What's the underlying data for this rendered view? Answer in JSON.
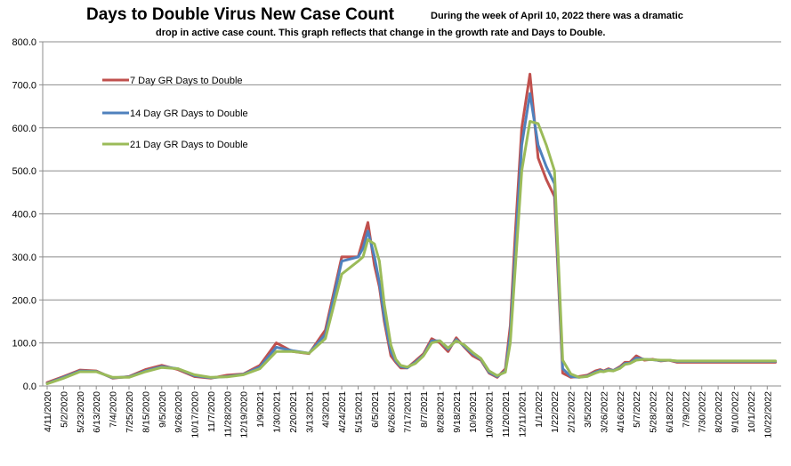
{
  "chart_data": {
    "type": "line",
    "title": "Days to Double Virus New Case Count",
    "subtitle_lines": [
      "During the week of April 10, 2022 there was a dramatic",
      "drop in active case count.  This graph reflects that change in the growth rate and Days to Double."
    ],
    "xlabel": "",
    "ylabel": "",
    "ylim": [
      0,
      800
    ],
    "y_ticks": [
      "0.0",
      "100.0",
      "200.0",
      "300.0",
      "400.0",
      "500.0",
      "600.0",
      "700.0",
      "800.0"
    ],
    "grid": true,
    "legend_position": "top-left",
    "x_tick_labels": [
      "4/11/2020",
      "5/2/2020",
      "5/23/2020",
      "6/13/2020",
      "7/4/2020",
      "7/25/2020",
      "8/15/2020",
      "9/5/2020",
      "9/26/2020",
      "10/17/2020",
      "11/7/2020",
      "11/28/2020",
      "12/19/2020",
      "1/9/2021",
      "1/30/2021",
      "2/20/2021",
      "3/13/2021",
      "4/3/2021",
      "4/24/2021",
      "5/15/2021",
      "6/5/2021",
      "6/26/2021",
      "7/17/2021",
      "8/7/2021",
      "8/28/2021",
      "9/18/2021",
      "10/9/2021",
      "10/30/2021",
      "11/20/2021",
      "12/11/2021",
      "1/1/2022",
      "1/22/2022",
      "2/12/2022",
      "3/5/2022",
      "3/26/2022",
      "4/16/2022",
      "5/7/2022",
      "5/28/2022",
      "6/18/2022",
      "7/9/2022",
      "7/30/2022",
      "8/20/2022",
      "9/10/2022",
      "10/1/2022",
      "10/22/2022"
    ],
    "x": [
      0,
      1,
      2,
      3,
      4,
      5,
      6,
      7,
      8,
      9,
      10,
      11,
      12,
      13,
      14,
      15,
      16,
      17,
      18,
      19,
      19.3,
      19.6,
      20,
      20.3,
      20.6,
      21,
      21.3,
      21.6,
      22,
      22.5,
      23,
      23.5,
      24,
      24.5,
      25,
      25.5,
      26,
      26.5,
      27,
      27.5,
      28,
      28.3,
      28.6,
      29,
      29.5,
      30,
      30.5,
      31,
      31.5,
      32,
      32.5,
      33,
      33.5,
      33.8,
      34,
      34.3,
      34.6,
      35,
      35.3,
      35.6,
      36,
      36.5,
      37,
      37.5,
      38,
      38.5,
      39,
      39.5,
      40,
      40.5,
      41,
      41.5,
      42,
      42.5,
      43,
      43.5,
      44,
      44.5
    ],
    "series": [
      {
        "name": "7 Day GR Days to Double",
        "color": "#c0504d",
        "values": [
          8,
          22,
          37,
          35,
          18,
          22,
          38,
          48,
          38,
          22,
          18,
          25,
          28,
          48,
          100,
          80,
          75,
          130,
          300,
          300,
          340,
          380,
          280,
          230,
          150,
          70,
          55,
          42,
          42,
          58,
          75,
          110,
          100,
          80,
          112,
          90,
          70,
          60,
          30,
          20,
          40,
          140,
          350,
          600,
          725,
          530,
          480,
          440,
          30,
          20,
          22,
          25,
          35,
          38,
          35,
          40,
          36,
          45,
          55,
          55,
          70,
          60,
          62,
          58,
          60,
          55,
          55,
          55,
          55,
          55,
          55,
          55,
          55,
          55,
          55,
          55,
          55,
          55
        ]
      },
      {
        "name": "14 Day GR Days to Double",
        "color": "#4f81bd",
        "values": [
          6,
          20,
          35,
          34,
          19,
          21,
          35,
          45,
          40,
          24,
          19,
          22,
          27,
          44,
          90,
          82,
          76,
          120,
          290,
          300,
          320,
          360,
          300,
          240,
          160,
          80,
          58,
          45,
          42,
          55,
          72,
          105,
          105,
          85,
          108,
          92,
          75,
          62,
          32,
          22,
          35,
          120,
          310,
          560,
          680,
          560,
          510,
          470,
          40,
          22,
          20,
          23,
          32,
          36,
          34,
          38,
          36,
          43,
          52,
          53,
          65,
          62,
          61,
          59,
          60,
          57,
          57,
          57,
          57,
          57,
          57,
          57,
          57,
          57,
          57,
          57,
          57,
          57
        ]
      },
      {
        "name": "21 Day GR Days to Double",
        "color": "#9bbb59",
        "values": [
          5,
          18,
          33,
          33,
          20,
          20,
          33,
          43,
          40,
          26,
          20,
          21,
          26,
          40,
          80,
          80,
          76,
          110,
          260,
          290,
          300,
          340,
          330,
          290,
          190,
          95,
          62,
          48,
          44,
          52,
          70,
          100,
          105,
          88,
          105,
          95,
          78,
          64,
          35,
          24,
          32,
          100,
          270,
          500,
          615,
          610,
          560,
          500,
          60,
          28,
          20,
          22,
          30,
          34,
          33,
          36,
          35,
          41,
          50,
          52,
          60,
          62,
          61,
          60,
          60,
          58,
          58,
          58,
          58,
          58,
          58,
          58,
          58,
          58,
          58,
          58,
          58,
          58
        ]
      }
    ]
  }
}
